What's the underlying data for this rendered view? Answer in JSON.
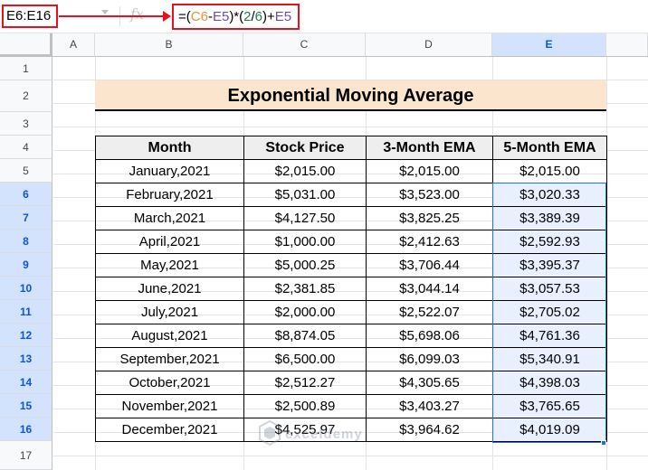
{
  "formula_bar": {
    "name_box": "E6:E16",
    "fx_label": "fx",
    "formula": {
      "prefix": "=(",
      "c6": "C6",
      "minus": "-",
      "e5": "E5",
      "mid": ")*(",
      "num_a": "2",
      "slash": "/",
      "num_b": "6",
      "close": ")+",
      "e5_end": "E5"
    }
  },
  "columns": [
    "A",
    "B",
    "C",
    "D",
    "E"
  ],
  "rows": [
    "1",
    "2",
    "3",
    "4",
    "5",
    "6",
    "7",
    "8",
    "9",
    "10",
    "11",
    "12",
    "13",
    "14",
    "15",
    "16",
    "17"
  ],
  "sheet": {
    "title": "Exponential Moving Average",
    "headers": [
      "Month",
      "Stock Price",
      "3-Month EMA",
      "5-Month EMA"
    ],
    "data": [
      [
        "January,2021",
        "$2,015.00",
        "$2,015.00",
        "$2,015.00"
      ],
      [
        "February,2021",
        "$5,031.00",
        "$3,523.00",
        "$3,020.33"
      ],
      [
        "March,2021",
        "$4,127.50",
        "$3,825.25",
        "$3,389.39"
      ],
      [
        "April,2021",
        "$1,000.00",
        "$2,412.63",
        "$2,592.93"
      ],
      [
        "May,2021",
        "$5,000.25",
        "$3,706.44",
        "$3,395.37"
      ],
      [
        "June,2021",
        "$2,381.85",
        "$3,044.14",
        "$3,057.53"
      ],
      [
        "July,2021",
        "$2,000.00",
        "$2,522.07",
        "$2,705.02"
      ],
      [
        "August,2021",
        "$8,874.05",
        "$5,698.06",
        "$4,761.36"
      ],
      [
        "September,2021",
        "$6,500.00",
        "$6,099.03",
        "$5,340.91"
      ],
      [
        "October,2021",
        "$2,512.27",
        "$4,305.65",
        "$4,398.03"
      ],
      [
        "November,2021",
        "$2,500.89",
        "$3,403.27",
        "$3,765.65"
      ],
      [
        "December,2021",
        "$4,525.97",
        "$3,964.62",
        "$4,019.09"
      ]
    ]
  },
  "watermark": "exceldemy",
  "colors": {
    "highlight_red": "#e8111b",
    "title_fill": "#fce5cd",
    "selection_blue": "#1a73e8",
    "selection_fill": "#e8f0fe"
  }
}
